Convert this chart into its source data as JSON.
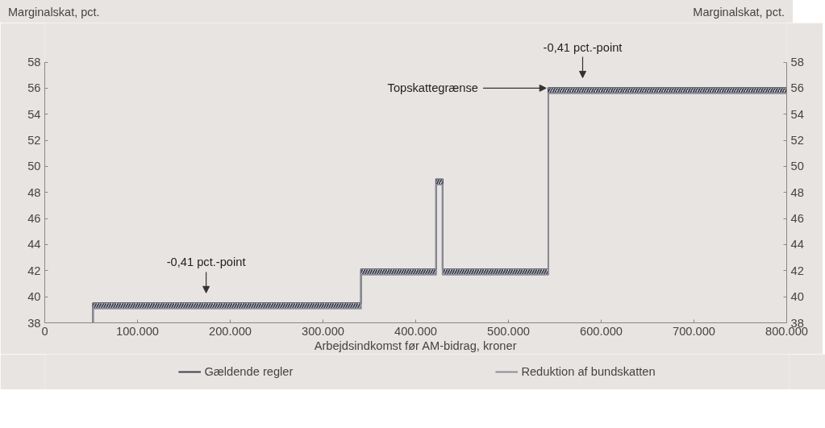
{
  "chart_data": {
    "type": "step",
    "xlabel": "Arbejdsindkomst før AM-bidrag, kroner",
    "ylabel": "Marginalskat, pct.",
    "y2label": "Marginalskat, pct.",
    "x": [
      52000,
      52000,
      341000,
      422000,
      429000,
      543000,
      800000
    ],
    "series": [
      {
        "name": "Gældende regler",
        "color": "#3d404f",
        "values": [
          38,
          39.5,
          42.1,
          49.0,
          42.1,
          56.0,
          56.0
        ]
      },
      {
        "name": "Reduktion af bundskatten",
        "color": "#8b8d99",
        "values": [
          38,
          39.1,
          41.7,
          48.6,
          41.7,
          55.6,
          55.6
        ],
        "lower": [
          38,
          39.1,
          41.7,
          48.6,
          41.7,
          55.6,
          55.6
        ],
        "upper": [
          38,
          39.5,
          42.1,
          49.0,
          42.1,
          56.0,
          56.0
        ]
      }
    ],
    "xlim": [
      0,
      800000
    ],
    "xticks": [
      {
        "value": 0,
        "label": "0"
      },
      {
        "value": 100000,
        "label": "100.000"
      },
      {
        "value": 200000,
        "label": "200.000"
      },
      {
        "value": 300000,
        "label": "300.000"
      },
      {
        "value": 400000,
        "label": "400.000"
      },
      {
        "value": 500000,
        "label": "500.000"
      },
      {
        "value": 600000,
        "label": "600.000"
      },
      {
        "value": 700000,
        "label": "700.000"
      },
      {
        "value": 800000,
        "label": "800.000"
      }
    ],
    "ylim": [
      38,
      58
    ],
    "yticks": [
      38,
      40,
      42,
      44,
      46,
      48,
      50,
      52,
      54,
      56,
      58
    ],
    "y2lim": [
      38,
      58
    ],
    "y2ticks": [
      38,
      40,
      42,
      44,
      46,
      48,
      50,
      52,
      54,
      56,
      58
    ],
    "annotations": [
      {
        "text": "-0,41 pct.-point",
        "x": 174000,
        "y": 39.5
      },
      {
        "text": "-0,41 pct.-point",
        "x": 580000,
        "y": 56.0
      },
      {
        "text": "Topskattegrænse",
        "x": 543000,
        "y": 56.0
      }
    ],
    "legend": "bottom"
  }
}
